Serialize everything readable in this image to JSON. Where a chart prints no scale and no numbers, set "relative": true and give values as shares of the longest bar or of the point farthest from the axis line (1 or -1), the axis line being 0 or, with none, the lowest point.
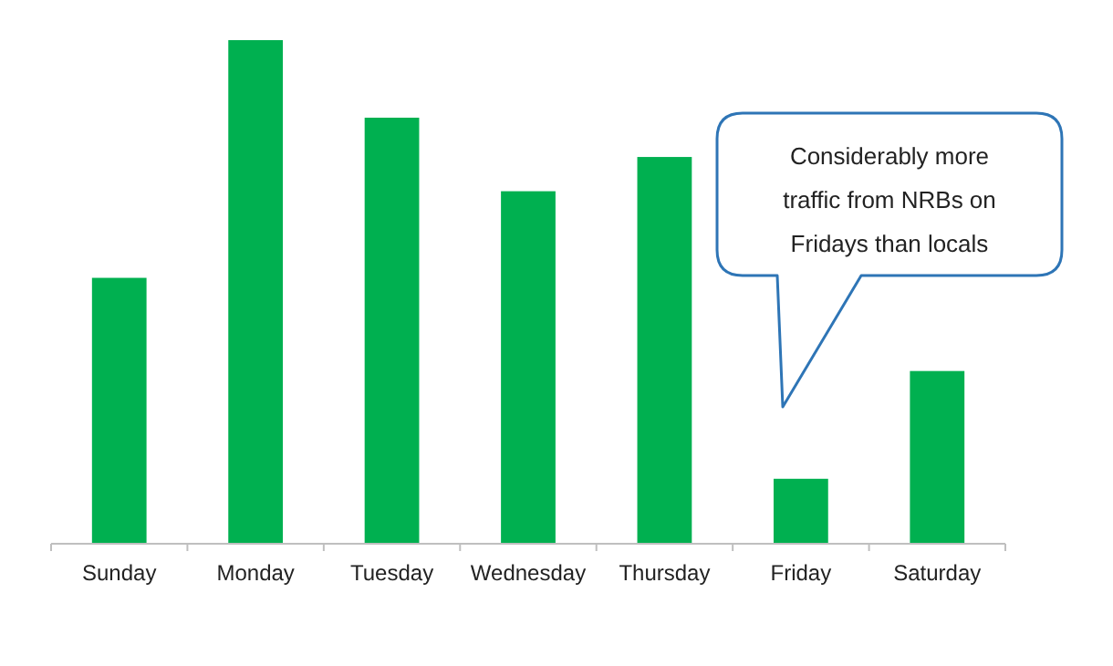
{
  "chart_data": {
    "type": "bar",
    "relative": true,
    "categories": [
      "Sunday",
      "Monday",
      "Tuesday",
      "Wednesday",
      "Thursday",
      "Friday",
      "Saturday"
    ],
    "values": [
      0.528,
      1,
      0.846,
      0.7,
      0.768,
      0.129,
      0.343
    ],
    "color": "#00b050",
    "annotations": [
      "Considerably more traffic from NRBs on Fridays than locals"
    ]
  }
}
